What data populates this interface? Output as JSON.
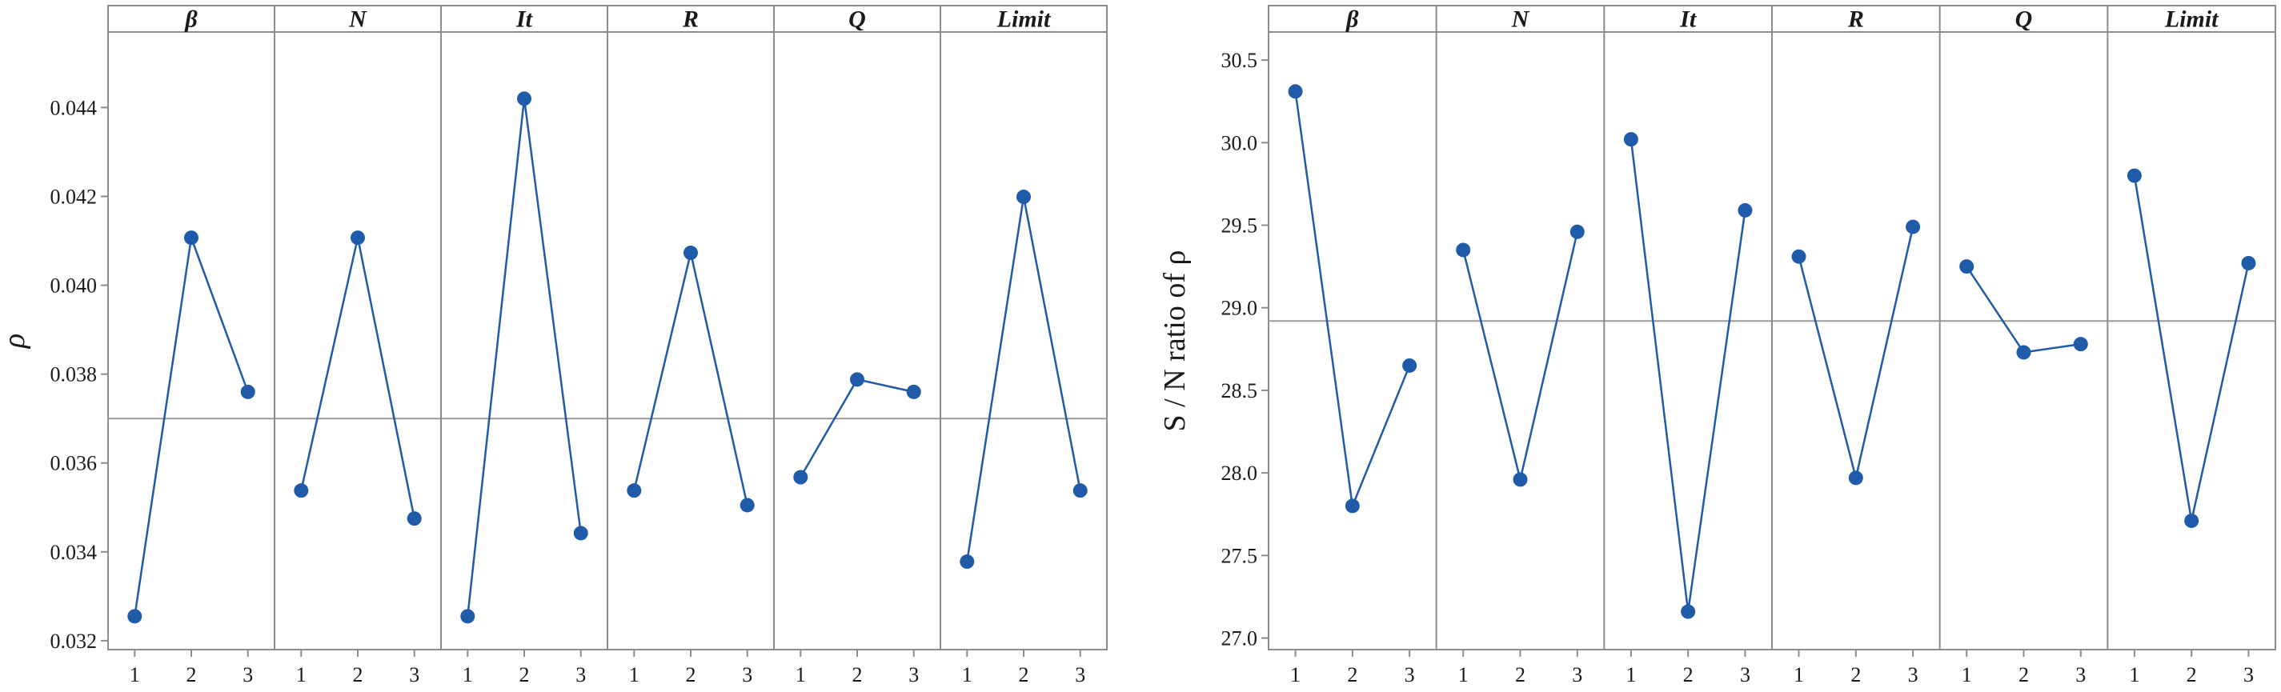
{
  "colors": {
    "series": "#1f5ba8",
    "frame": "#8c8c8c",
    "reference": "#999999"
  },
  "chart_data": [
    {
      "type": "line",
      "panels": [
        "β",
        "N",
        "It",
        "R",
        "Q",
        "Limit"
      ],
      "x": [
        "1",
        "2",
        "3"
      ],
      "ylabel": "ρ",
      "ylim": [
        0.0318,
        0.0457
      ],
      "yticks": [
        "0.032",
        "0.034",
        "0.036",
        "0.038",
        "0.040",
        "0.042",
        "0.044"
      ],
      "reference_line": 0.037,
      "series": [
        {
          "panel": "β",
          "values": [
            0.03255,
            0.04107,
            0.0376
          ]
        },
        {
          "panel": "N",
          "values": [
            0.03538,
            0.04107,
            0.03475
          ]
        },
        {
          "panel": "It",
          "values": [
            0.03255,
            0.0442,
            0.03442
          ]
        },
        {
          "panel": "R",
          "values": [
            0.03538,
            0.04073,
            0.03505
          ]
        },
        {
          "panel": "Q",
          "values": [
            0.03568,
            0.03788,
            0.0376
          ]
        },
        {
          "panel": "Limit",
          "values": [
            0.03378,
            0.04199,
            0.03538
          ]
        }
      ]
    },
    {
      "type": "line",
      "panels": [
        "β",
        "N",
        "It",
        "R",
        "Q",
        "Limit"
      ],
      "x": [
        "1",
        "2",
        "3"
      ],
      "ylabel": "S / N ratio of  ρ",
      "ylim": [
        26.93,
        30.67
      ],
      "yticks": [
        "27.0",
        "27.5",
        "28.0",
        "28.5",
        "29.0",
        "29.5",
        "30.0",
        "30.5"
      ],
      "reference_line": 28.92,
      "series": [
        {
          "panel": "β",
          "values": [
            30.31,
            27.8,
            28.65
          ]
        },
        {
          "panel": "N",
          "values": [
            29.35,
            27.96,
            29.46
          ]
        },
        {
          "panel": "It",
          "values": [
            30.02,
            27.16,
            29.59
          ]
        },
        {
          "panel": "R",
          "values": [
            29.31,
            27.97,
            29.49
          ]
        },
        {
          "panel": "Q",
          "values": [
            29.25,
            28.73,
            28.78
          ]
        },
        {
          "panel": "Limit",
          "values": [
            29.8,
            27.71,
            29.27
          ]
        }
      ]
    }
  ]
}
